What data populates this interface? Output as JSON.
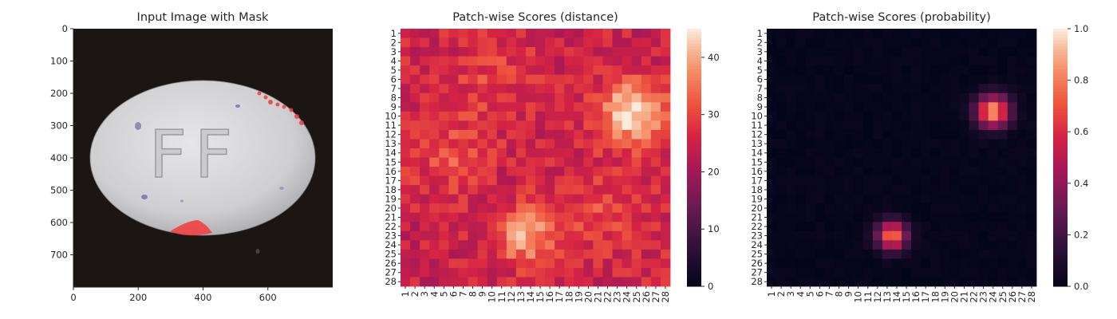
{
  "chart_data": [
    {
      "type": "image",
      "title": "Input Image with Mask",
      "xticks": [
        "0",
        "200",
        "400",
        "600"
      ],
      "yticks": [
        "0",
        "100",
        "200",
        "300",
        "400",
        "500",
        "600",
        "700"
      ],
      "xlim": [
        0,
        800
      ],
      "ylim": [
        800,
        0
      ],
      "image_content": {
        "pill_text": "FF",
        "background": "#1b1514",
        "pill_color": "#c9c8cc",
        "mask_color": "#f23b3b",
        "mask_regions": [
          "upper-right pill edge",
          "bottom pill edge"
        ]
      }
    },
    {
      "type": "heatmap",
      "title": "Patch-wise Scores (distance)",
      "xticks": [
        "1",
        "2",
        "3",
        "4",
        "5",
        "6",
        "7",
        "8",
        "9",
        "10",
        "11",
        "12",
        "13",
        "14",
        "15",
        "16",
        "17",
        "18",
        "19",
        "20",
        "21",
        "22",
        "23",
        "24",
        "25",
        "26",
        "27",
        "28"
      ],
      "yticks": [
        "1",
        "2",
        "3",
        "4",
        "5",
        "6",
        "7",
        "8",
        "9",
        "10",
        "11",
        "12",
        "13",
        "14",
        "15",
        "16",
        "17",
        "18",
        "19",
        "20",
        "21",
        "22",
        "23",
        "24",
        "25",
        "26",
        "27",
        "28"
      ],
      "colorbar": {
        "ticks": [
          "0",
          "10",
          "20",
          "30",
          "40"
        ],
        "range": [
          0,
          45
        ]
      },
      "colormap": "rocket",
      "baseline": 25,
      "hotspots": [
        {
          "row": 9.5,
          "col": 24.5,
          "peak": 45,
          "spread": 2.4
        },
        {
          "row": 23,
          "col": 13.5,
          "peak": 39,
          "spread": 2.2
        },
        {
          "row": 14.5,
          "col": 5.5,
          "peak": 31,
          "spread": 2.8
        },
        {
          "row": 20.5,
          "col": 21.5,
          "peak": 30,
          "spread": 3.2
        },
        {
          "row": 6,
          "col": 10,
          "peak": 29,
          "spread": 3.5
        }
      ]
    },
    {
      "type": "heatmap",
      "title": "Patch-wise Scores (probability)",
      "xticks": [
        "1",
        "2",
        "3",
        "4",
        "5",
        "6",
        "7",
        "8",
        "9",
        "10",
        "11",
        "12",
        "13",
        "14",
        "15",
        "16",
        "17",
        "18",
        "19",
        "20",
        "21",
        "22",
        "23",
        "24",
        "25",
        "26",
        "27",
        "28"
      ],
      "yticks": [
        "1",
        "2",
        "3",
        "4",
        "5",
        "6",
        "7",
        "8",
        "9",
        "10",
        "11",
        "12",
        "13",
        "14",
        "15",
        "16",
        "17",
        "18",
        "19",
        "20",
        "21",
        "22",
        "23",
        "24",
        "25",
        "26",
        "27",
        "28"
      ],
      "colorbar": {
        "ticks": [
          "0.0",
          "0.2",
          "0.4",
          "0.6",
          "0.8",
          "1.0"
        ],
        "range": [
          0,
          1
        ]
      },
      "colormap": "rocket",
      "baseline": 0.015,
      "hotspots": [
        {
          "row": 9.5,
          "col": 24,
          "peak": 0.88,
          "spread": 1.2
        },
        {
          "row": 23,
          "col": 13.5,
          "peak": 0.78,
          "spread": 1.1
        }
      ]
    }
  ]
}
